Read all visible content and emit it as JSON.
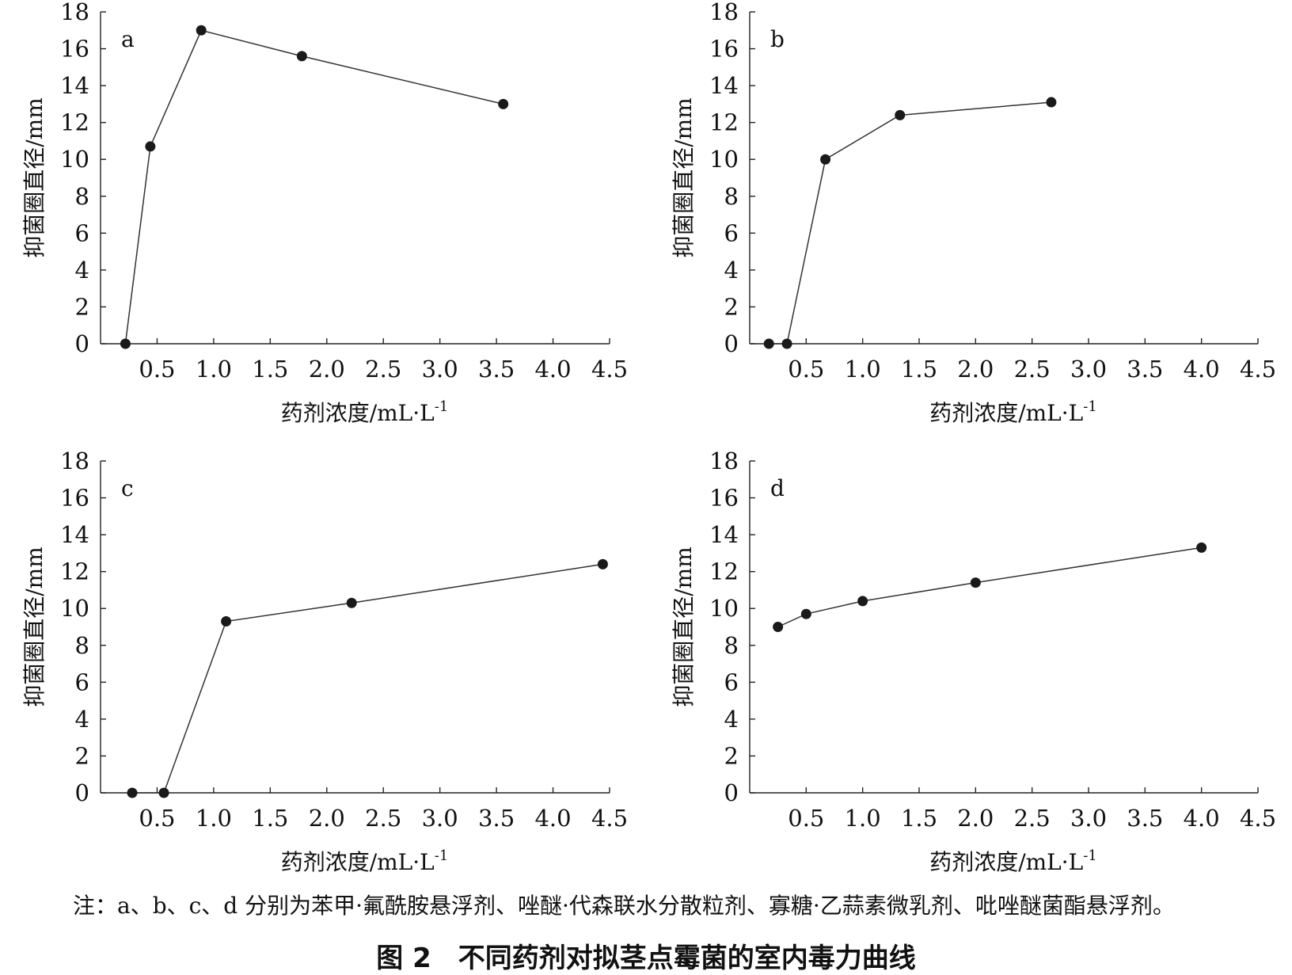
{
  "note": "注：a、b、c、d 分别为苯甲·氟酰胺悬浮剂、唑醚·代森联水分散粒剂、寡糖·乙蒜素微乳剂、吡唑醚菌酯悬浮剂。",
  "figure": {
    "number": "图 2",
    "title": "不同药剂对拟茎点霉菌的室内毒力曲线"
  },
  "chart_data": [
    {
      "type": "line",
      "panel": "a",
      "xlabel": "药剂浓度/mL·L",
      "xlabel_exp": "-1",
      "ylabel": "抑菌圈直径/mm",
      "xlim": [
        0,
        4.5
      ],
      "ylim": [
        0,
        18
      ],
      "xticks": [
        "0.5",
        "1.0",
        "1.5",
        "2.0",
        "2.5",
        "3.0",
        "3.5",
        "4.0",
        "4.5"
      ],
      "yticks": [
        "0",
        "2",
        "4",
        "6",
        "8",
        "10",
        "12",
        "14",
        "16",
        "18"
      ],
      "series": [
        {
          "x": [
            0.22,
            0.44,
            0.89,
            1.78,
            3.56
          ],
          "y": [
            0,
            10.7,
            17.0,
            15.6,
            13.0
          ]
        }
      ]
    },
    {
      "type": "line",
      "panel": "b",
      "xlabel": "药剂浓度/mL·L",
      "xlabel_exp": "-1",
      "ylabel": "抑菌圈直径/mm",
      "xlim": [
        0,
        4.5
      ],
      "ylim": [
        0,
        18
      ],
      "xticks": [
        "0.5",
        "1.0",
        "1.5",
        "2.0",
        "2.5",
        "3.0",
        "3.5",
        "4.0",
        "4.5"
      ],
      "yticks": [
        "0",
        "2",
        "4",
        "6",
        "8",
        "10",
        "12",
        "14",
        "16",
        "18"
      ],
      "series": [
        {
          "x": [
            0.17,
            0.33,
            0.67,
            1.33,
            2.67
          ],
          "y": [
            0,
            0,
            10.0,
            12.4,
            13.1
          ]
        }
      ]
    },
    {
      "type": "line",
      "panel": "c",
      "xlabel": "药剂浓度/mL·L",
      "xlabel_exp": "-1",
      "ylabel": "抑菌圈直径/mm",
      "xlim": [
        0,
        4.5
      ],
      "ylim": [
        0,
        18
      ],
      "xticks": [
        "0.5",
        "1.0",
        "1.5",
        "2.0",
        "2.5",
        "3.0",
        "3.5",
        "4.0",
        "4.5"
      ],
      "yticks": [
        "0",
        "2",
        "4",
        "6",
        "8",
        "10",
        "12",
        "14",
        "16",
        "18"
      ],
      "series": [
        {
          "x": [
            0.28,
            0.56,
            1.11,
            2.22,
            4.44
          ],
          "y": [
            0,
            0,
            9.3,
            10.3,
            12.4
          ]
        }
      ]
    },
    {
      "type": "line",
      "panel": "d",
      "xlabel": "药剂浓度/mL·L",
      "xlabel_exp": "-1",
      "ylabel": "抑菌圈直径/mm",
      "xlim": [
        0,
        4.5
      ],
      "ylim": [
        0,
        18
      ],
      "xticks": [
        "0.5",
        "1.0",
        "1.5",
        "2.0",
        "2.5",
        "3.0",
        "3.5",
        "4.0",
        "4.5"
      ],
      "yticks": [
        "0",
        "2",
        "4",
        "6",
        "8",
        "10",
        "12",
        "14",
        "16",
        "18"
      ],
      "series": [
        {
          "x": [
            0.25,
            0.5,
            1.0,
            2.0,
            4.0
          ],
          "y": [
            9.0,
            9.7,
            10.4,
            11.4,
            13.3
          ]
        }
      ]
    }
  ]
}
